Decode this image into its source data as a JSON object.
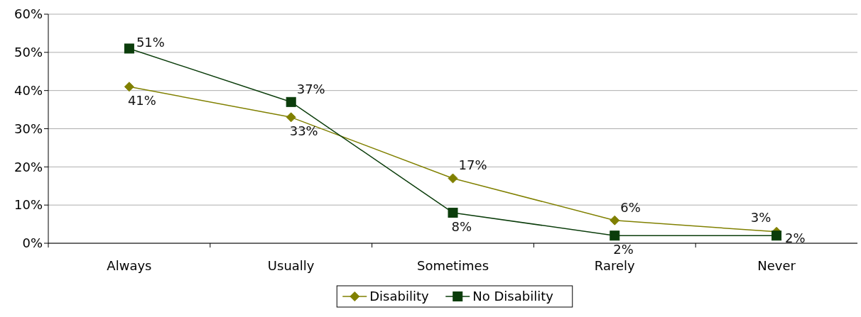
{
  "chart_data": {
    "type": "line",
    "categories": [
      "Always",
      "Usually",
      "Sometimes",
      "Rarely",
      "Never"
    ],
    "series": [
      {
        "name": "Disability",
        "color": "#808000",
        "marker": "diamond",
        "values": [
          41,
          33,
          17,
          6,
          3
        ],
        "value_labels": [
          "41%",
          "33%",
          "17%",
          "6%",
          "3%"
        ]
      },
      {
        "name": "No Disability",
        "color": "#0b3d0b",
        "marker": "square",
        "values": [
          51,
          37,
          8,
          2,
          2
        ],
        "value_labels": [
          "51%",
          "37%",
          "8%",
          "2%",
          "2%"
        ]
      }
    ],
    "ylim": [
      0,
      60
    ],
    "yticks": [
      {
        "value": 0,
        "label": "0%"
      },
      {
        "value": 10,
        "label": "10%"
      },
      {
        "value": 20,
        "label": "20%"
      },
      {
        "value": 30,
        "label": "30%"
      },
      {
        "value": 40,
        "label": "40%"
      },
      {
        "value": 50,
        "label": "50%"
      },
      {
        "value": 60,
        "label": "60%"
      }
    ],
    "grid": "y",
    "legend": "bottom",
    "line_style": "solid"
  }
}
